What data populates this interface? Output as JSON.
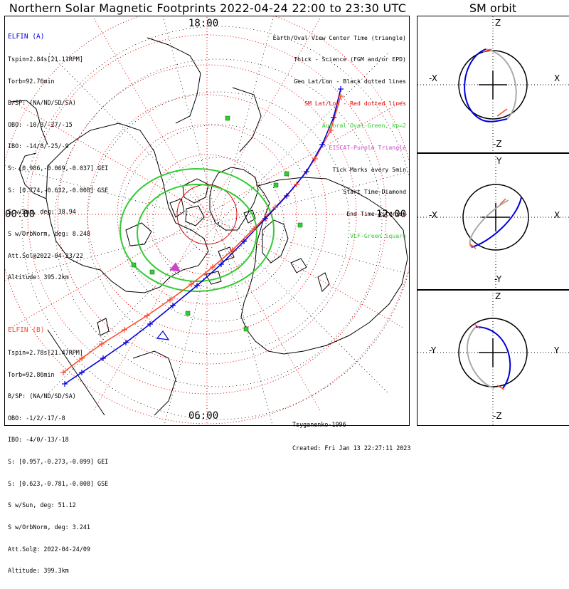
{
  "title": "Northern Solar Magnetic Footprints 2022-04-24 22:00 to 23:30 UTC",
  "sm_orbit_title": "SM orbit",
  "time_labels": {
    "top": "18:00",
    "left": "00:00",
    "right": "12:00",
    "bottom": "06:00"
  },
  "elfin_a": {
    "title": "ELFIN (A)",
    "color": "#0000dd",
    "lines": [
      "Tspin=2.84s[21.11RPM]",
      "Torb=92.76min",
      "B/SP: (NA/ND/SD/SA)",
      "OBO: -10/3/-27/-15",
      "IBO: -14/8/-25/-9",
      "S: [0.986,-0.069,-0.037] GEI",
      "S: [0.774,-0.632,-0.008] GSE",
      "S w/Sun, deg: 38.94",
      "S w/OrbNorm, deg: 8.248",
      "Att.Sol@2022-04-23/22",
      "Altitude: 395.2km"
    ]
  },
  "elfin_b": {
    "title": "ELFIN (B)",
    "color": "#ff4a2a",
    "lines": [
      "Tspin=2.78s[21.47RPM]",
      "Torb=92.86min",
      "B/SP: (NA/ND/SD/SA)",
      "OBO: -1/2/-17/-8",
      "IBO: -4/0/-13/-18",
      "S: [0.957,-0.273,-0.099] GEI",
      "S: [0.623,-0.781,-0.008] GSE",
      "S w/Sun, deg: 51.12",
      "S w/OrbNorm, deg: 3.241",
      "Att.Sol@: 2022-04-24/09",
      "Altitude: 399.3km"
    ]
  },
  "legend": [
    {
      "text": "Earth/Oval View Center Time (triangle)",
      "color": "#000000"
    },
    {
      "text": "Thick - Science (FGM and/or EPD)",
      "color": "#000000"
    },
    {
      "text": "Geo Lat/Lon - Black dotted lines",
      "color": "#000000"
    },
    {
      "text": "SM Lat/Lon - Red dotted lines",
      "color": "#e00000"
    },
    {
      "text": "Auroral Oval-Green, kp=2",
      "color": "#33cc33"
    },
    {
      "text": "EISCAT-Purple Triangle",
      "color": "#cc44cc"
    },
    {
      "text": "Tick Marks every 5min",
      "color": "#000000"
    },
    {
      "text": "Start Time-Diamond",
      "color": "#000000"
    },
    {
      "text": "End Time-Asterisk",
      "color": "#000000"
    },
    {
      "text": "VLF-Green Square",
      "color": "#33cc33"
    }
  ],
  "footer": {
    "model": "Tsyganenko-1996",
    "created": "Created: Fri Jan 13 22:27:11 2023"
  },
  "sm_panels": [
    {
      "top": "Z",
      "bottom": "-Z",
      "left": "-X",
      "right": "X"
    },
    {
      "top": "Y",
      "bottom": "-Y",
      "left": "-X",
      "right": "X"
    },
    {
      "top": "Z",
      "bottom": "-Z",
      "left": "-Y",
      "right": "Y"
    }
  ],
  "colors": {
    "sm_grid": "#e00000",
    "geo_grid": "#000000",
    "auroral_oval": "#33cc33",
    "elfin_a": "#0000dd",
    "elfin_b": "#ff4a2a",
    "sm_orbit_gray": "#aaaaaa"
  }
}
